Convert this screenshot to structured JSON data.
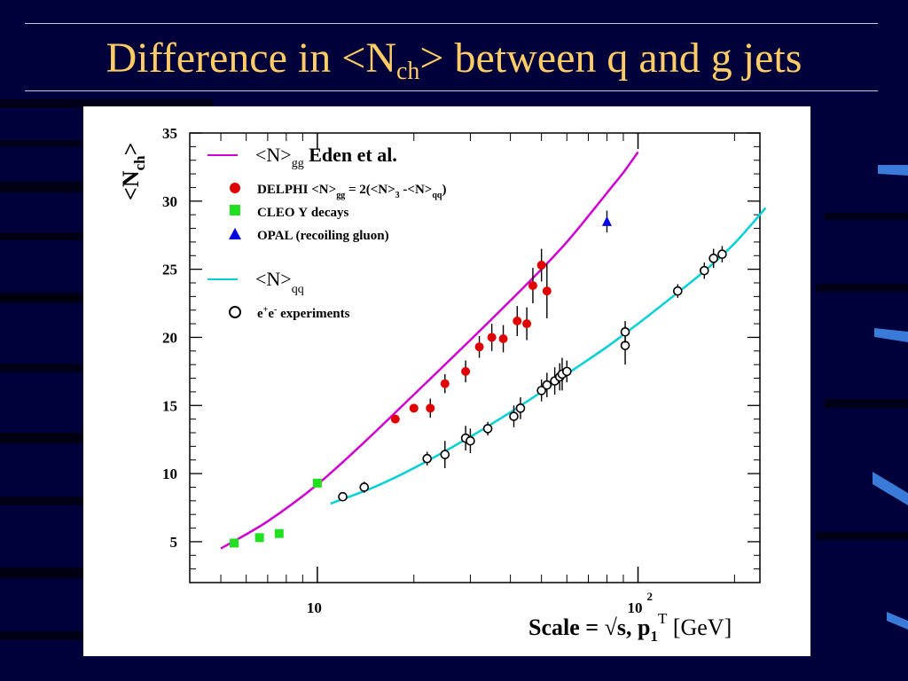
{
  "slide": {
    "title_prefix": "Difference in <N",
    "title_sub": "ch",
    "title_suffix": "> between q and g jets"
  },
  "colors": {
    "background": "#00003a",
    "title": "#ffcc66",
    "gg_curve": "#d000d0",
    "qq_curve": "#00d0d8",
    "delphi": "#e00000",
    "cleo": "#20e020",
    "opal": "#0000e0"
  },
  "chart_data": {
    "type": "scatter",
    "x_scale": "log",
    "xlim": [
      4,
      240
    ],
    "ylim": [
      2,
      35
    ],
    "yticks": [
      5,
      10,
      15,
      20,
      25,
      30,
      35
    ],
    "xtick_labels": [
      {
        "value": 10,
        "label": "10"
      },
      {
        "value": 100,
        "label": "10",
        "sup": "2"
      }
    ],
    "ylabel": "<N",
    "ylabel_sub": "ch",
    "ylabel_end": ">",
    "xlabel_prefix": "Scale = √s, p",
    "xlabel_sub": "1",
    "xlabel_sup": "T",
    "xlabel_suffix": " [GeV]",
    "legend": {
      "gg_curve": {
        "pre": "<N>",
        "sub": "gg",
        "post": " Eden et al."
      },
      "delphi": {
        "pre": "DELPHI <N>",
        "sub1": "gg",
        "mid1": " = 2(<N>",
        "sub2": "3",
        "mid2": " -<N>",
        "sub3": "qq",
        "post": ")"
      },
      "cleo": "CLEO Υ decays",
      "opal": "OPAL (recoiling gluon)",
      "qq_curve": {
        "pre": "<N>",
        "sub": "qq"
      },
      "ee": {
        "pre": "e",
        "sup1": "+",
        "mid": "e",
        "sup2": "-",
        "post": " experiments"
      }
    },
    "series": [
      {
        "name": "<N>gg Eden et al.",
        "kind": "curve",
        "color": "#d000d0",
        "x": [
          5,
          7,
          10,
          14,
          20,
          30,
          40,
          50,
          60,
          70,
          80,
          90,
          100
        ],
        "y": [
          4.5,
          6.5,
          9.2,
          12.3,
          15.8,
          19.8,
          22.7,
          25.0,
          27.0,
          28.9,
          30.6,
          32.1,
          33.6
        ]
      },
      {
        "name": "<N>qq",
        "kind": "curve",
        "color": "#00d0d8",
        "x": [
          11,
          15,
          20,
          30,
          40,
          50,
          60,
          80,
          100,
          130,
          160,
          200,
          250
        ],
        "y": [
          7.8,
          9.0,
          10.4,
          12.7,
          14.5,
          16.0,
          17.3,
          19.3,
          21.0,
          23.1,
          24.8,
          26.9,
          29.5
        ]
      },
      {
        "name": "DELPHI",
        "kind": "points",
        "marker": "circle",
        "color": "#e00000",
        "x": [
          17.5,
          20,
          22.5,
          25,
          29,
          32,
          35,
          38,
          42,
          45,
          47,
          50,
          52
        ],
        "y": [
          14.0,
          14.8,
          14.8,
          16.6,
          17.5,
          19.3,
          20.0,
          19.9,
          21.2,
          21.0,
          23.8,
          25.3,
          23.4
        ],
        "err": [
          0.3,
          0.3,
          0.7,
          0.7,
          0.8,
          0.8,
          1.0,
          1.0,
          1.1,
          1.2,
          1.3,
          1.2,
          2.0
        ]
      },
      {
        "name": "CLEO Υ decays",
        "kind": "points",
        "marker": "square",
        "color": "#20e020",
        "x": [
          5.5,
          6.6,
          7.6,
          10
        ],
        "y": [
          4.9,
          5.3,
          5.6,
          9.3
        ],
        "err": [
          0,
          0,
          0,
          0
        ]
      },
      {
        "name": "OPAL (recoiling gluon)",
        "kind": "points",
        "marker": "triangle",
        "color": "#0000e0",
        "x": [
          80
        ],
        "y": [
          28.5
        ],
        "err": [
          0.8
        ]
      },
      {
        "name": "e+e- experiments",
        "kind": "points",
        "marker": "open-circle",
        "color": "#000000",
        "x": [
          12,
          14,
          22,
          25,
          29,
          30,
          34,
          41,
          43,
          50,
          52,
          55,
          57,
          58,
          60,
          91.2,
          91.2,
          133,
          161,
          172,
          183
        ],
        "y": [
          8.3,
          9.0,
          11.1,
          11.4,
          12.6,
          12.4,
          13.3,
          14.2,
          14.8,
          16.1,
          16.5,
          16.8,
          17.1,
          17.3,
          17.5,
          19.4,
          20.4,
          23.4,
          24.9,
          25.8,
          26.1
        ],
        "err": [
          0.3,
          0.4,
          0.5,
          1.0,
          0.9,
          0.9,
          0.5,
          0.8,
          0.8,
          0.8,
          0.9,
          1.0,
          1.0,
          1.2,
          0.8,
          1.4,
          0.8,
          0.5,
          0.6,
          0.7,
          0.6
        ]
      }
    ]
  }
}
